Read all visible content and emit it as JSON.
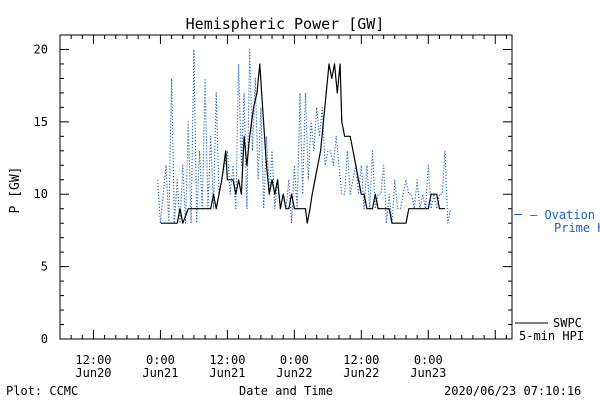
{
  "chart_data": {
    "type": "line",
    "title": "Hemispheric Power [GW]",
    "xlabel": "Date and Time",
    "ylabel": "P [GW]",
    "ylim": [
      0,
      21
    ],
    "yticks": [
      0,
      5,
      10,
      15,
      20
    ],
    "x_unit": "hours since 2020-06-20 00:00 UT",
    "xlim": [
      6,
      87
    ],
    "xticks": [
      {
        "x": 12,
        "line1": "12:00",
        "line2": "Jun20"
      },
      {
        "x": 24,
        "line1": "0:00",
        "line2": "Jun21"
      },
      {
        "x": 36,
        "line1": "12:00",
        "line2": "Jun21"
      },
      {
        "x": 48,
        "line1": "0:00",
        "line2": "Jun22"
      },
      {
        "x": 60,
        "line1": "12:00",
        "line2": "Jun22"
      },
      {
        "x": 72,
        "line1": "0:00",
        "line2": "Jun23"
      }
    ],
    "grid": false,
    "legend_position": "right",
    "series": [
      {
        "name": "SWPC 5-min HPI",
        "legend_line1": "SWPC",
        "legend_line2": "5-min HPI",
        "color": "#000000",
        "style": "solid",
        "points": [
          [
            24.1,
            8
          ],
          [
            25,
            8
          ],
          [
            26,
            8
          ],
          [
            27,
            8
          ],
          [
            27.5,
            9
          ],
          [
            28,
            8
          ],
          [
            29,
            9
          ],
          [
            30,
            9
          ],
          [
            31,
            9
          ],
          [
            32,
            9
          ],
          [
            33,
            9
          ],
          [
            33.5,
            10
          ],
          [
            34,
            9
          ],
          [
            35,
            11
          ],
          [
            35.7,
            13
          ],
          [
            36,
            11
          ],
          [
            37,
            11
          ],
          [
            37.5,
            10
          ],
          [
            38,
            11
          ],
          [
            38.5,
            10
          ],
          [
            39,
            14
          ],
          [
            39.5,
            12
          ],
          [
            40,
            14
          ],
          [
            40.7,
            16
          ],
          [
            41.3,
            17
          ],
          [
            41.8,
            19
          ],
          [
            42.3,
            16
          ],
          [
            43,
            12
          ],
          [
            43.5,
            10
          ],
          [
            44,
            11
          ],
          [
            44.5,
            10
          ],
          [
            45,
            11
          ],
          [
            45.5,
            9
          ],
          [
            46,
            10
          ],
          [
            46.5,
            9
          ],
          [
            47,
            9
          ],
          [
            47.5,
            10
          ],
          [
            48,
            9
          ],
          [
            48.5,
            9
          ],
          [
            49,
            9
          ],
          [
            49.5,
            9
          ],
          [
            50,
            9
          ],
          [
            50.3,
            8
          ],
          [
            50.8,
            9
          ],
          [
            51.2,
            10
          ],
          [
            51.7,
            11
          ],
          [
            52.2,
            12
          ],
          [
            52.7,
            13
          ],
          [
            53.2,
            15
          ],
          [
            53.7,
            17
          ],
          [
            54.2,
            19
          ],
          [
            54.7,
            18
          ],
          [
            55.2,
            19
          ],
          [
            55.7,
            17
          ],
          [
            56.2,
            19
          ],
          [
            56.5,
            15
          ],
          [
            57,
            14
          ],
          [
            57.5,
            14
          ],
          [
            58,
            14
          ],
          [
            58.5,
            13
          ],
          [
            59,
            12
          ],
          [
            59.5,
            11
          ],
          [
            60,
            10
          ],
          [
            60.5,
            10
          ],
          [
            61,
            9
          ],
          [
            61.5,
            9
          ],
          [
            62,
            9
          ],
          [
            62.5,
            10
          ],
          [
            63,
            9
          ],
          [
            63.5,
            9
          ],
          [
            64,
            9
          ],
          [
            64.5,
            9
          ],
          [
            65,
            9
          ],
          [
            65.5,
            8
          ],
          [
            66,
            8
          ],
          [
            67,
            8
          ],
          [
            68,
            8
          ],
          [
            68.5,
            9
          ],
          [
            69,
            9
          ],
          [
            70,
            9
          ],
          [
            71,
            9
          ],
          [
            71.5,
            9
          ],
          [
            72,
            9
          ],
          [
            72.5,
            10
          ],
          [
            73,
            10
          ],
          [
            73.5,
            10
          ],
          [
            74,
            9
          ],
          [
            74.5,
            9
          ],
          [
            75,
            9
          ]
        ]
      },
      {
        "name": "Ovation Prime HPI",
        "legend_line1": "— Ovation",
        "legend_line2": "Prime HPI",
        "color": "#1f5fbf",
        "style": "dotted",
        "points": [
          [
            23.5,
            11
          ],
          [
            24,
            8
          ],
          [
            25,
            12
          ],
          [
            25.5,
            8
          ],
          [
            26,
            18
          ],
          [
            26.5,
            8
          ],
          [
            27,
            11
          ],
          [
            27.5,
            8
          ],
          [
            28,
            12
          ],
          [
            28.5,
            8
          ],
          [
            29,
            15
          ],
          [
            29.5,
            8
          ],
          [
            30,
            20
          ],
          [
            30.5,
            8
          ],
          [
            31,
            13
          ],
          [
            31.5,
            9
          ],
          [
            32,
            18
          ],
          [
            32.5,
            9
          ],
          [
            33,
            14
          ],
          [
            33.5,
            9
          ],
          [
            34,
            17
          ],
          [
            34.5,
            10
          ],
          [
            35,
            11
          ],
          [
            35.5,
            12
          ],
          [
            36,
            13
          ],
          [
            36.5,
            10
          ],
          [
            37,
            12
          ],
          [
            37.5,
            9
          ],
          [
            38,
            19
          ],
          [
            38.5,
            12
          ],
          [
            39,
            17
          ],
          [
            39.5,
            9
          ],
          [
            40,
            20
          ],
          [
            40.5,
            13
          ],
          [
            41,
            18
          ],
          [
            41.5,
            11
          ],
          [
            42,
            16
          ],
          [
            42.5,
            9
          ],
          [
            43,
            14
          ],
          [
            43.5,
            10
          ],
          [
            44,
            13
          ],
          [
            44.5,
            9
          ],
          [
            45,
            11
          ],
          [
            45.5,
            9
          ],
          [
            46,
            10
          ],
          [
            46.5,
            9
          ],
          [
            47,
            11
          ],
          [
            47.5,
            8
          ],
          [
            48,
            12
          ],
          [
            48.5,
            9
          ],
          [
            49,
            17
          ],
          [
            49.5,
            10
          ],
          [
            50,
            17
          ],
          [
            50.5,
            11
          ],
          [
            51,
            15
          ],
          [
            51.5,
            13
          ],
          [
            52,
            16
          ],
          [
            52.5,
            14
          ],
          [
            53,
            16
          ],
          [
            53.5,
            12
          ],
          [
            54,
            13
          ],
          [
            54.5,
            13
          ],
          [
            55,
            12
          ],
          [
            55.5,
            14
          ],
          [
            56,
            12
          ],
          [
            56.5,
            10
          ],
          [
            57,
            10
          ],
          [
            57.5,
            13
          ],
          [
            58,
            10
          ],
          [
            58.5,
            11
          ],
          [
            59,
            12
          ],
          [
            59.5,
            10
          ],
          [
            60,
            12
          ],
          [
            60.5,
            9
          ],
          [
            61,
            12
          ],
          [
            61.5,
            9
          ],
          [
            62,
            13
          ],
          [
            62.5,
            9
          ],
          [
            63,
            10
          ],
          [
            63.5,
            10
          ],
          [
            64,
            12
          ],
          [
            64.5,
            8
          ],
          [
            65,
            10
          ],
          [
            65.5,
            8
          ],
          [
            66,
            11
          ],
          [
            66.5,
            9
          ],
          [
            67,
            9
          ],
          [
            67.5,
            10
          ],
          [
            68,
            11
          ],
          [
            68.5,
            10
          ],
          [
            69,
            10
          ],
          [
            69.5,
            9
          ],
          [
            70,
            11
          ],
          [
            70.5,
            9
          ],
          [
            71,
            10
          ],
          [
            71.5,
            9
          ],
          [
            72,
            12
          ],
          [
            72.5,
            9
          ],
          [
            73,
            10
          ],
          [
            73.5,
            9
          ],
          [
            74,
            10
          ],
          [
            74.5,
            10
          ],
          [
            75,
            13
          ],
          [
            75.5,
            8
          ],
          [
            76,
            9
          ]
        ]
      }
    ]
  },
  "footer": {
    "plot_credit": "Plot: CCMC",
    "timestamp": "2020/06/23 07:10:16"
  }
}
